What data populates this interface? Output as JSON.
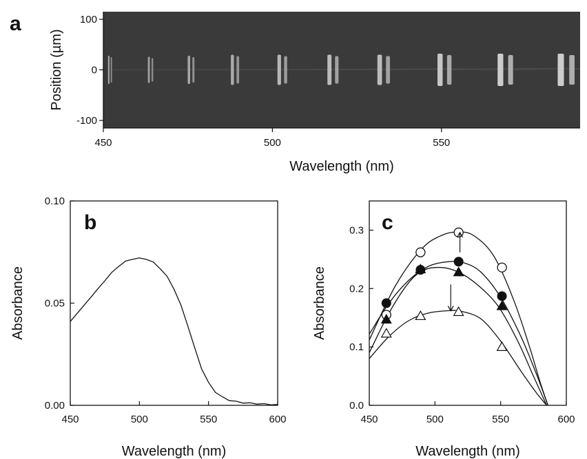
{
  "panels": {
    "a": {
      "label": "a"
    },
    "b": {
      "label": "b"
    },
    "c": {
      "label": "c"
    }
  },
  "chart_data": [
    {
      "id": "a",
      "type": "heatmap",
      "xlabel": "Wavelength (nm)",
      "ylabel": "Position (µm)",
      "xlim": [
        450,
        591
      ],
      "ylim": [
        -115,
        115
      ],
      "xticks": [
        "450",
        "500",
        "550"
      ],
      "yticks": [
        "100",
        "0",
        "-100"
      ],
      "xtick_values": [
        450,
        500,
        550
      ],
      "ytick_values": [
        100,
        0,
        -100
      ],
      "grid": false,
      "bands": [
        {
          "wavelength": 452,
          "intensity": 0.55,
          "halfheight": 28
        },
        {
          "wavelength": 464,
          "intensity": 0.45,
          "halfheight": 26
        },
        {
          "wavelength": 476,
          "intensity": 0.5,
          "halfheight": 28
        },
        {
          "wavelength": 489,
          "intensity": 0.55,
          "halfheight": 30
        },
        {
          "wavelength": 503,
          "intensity": 0.65,
          "halfheight": 30
        },
        {
          "wavelength": 518,
          "intensity": 0.7,
          "halfheight": 30
        },
        {
          "wavelength": 533,
          "intensity": 0.7,
          "halfheight": 30
        },
        {
          "wavelength": 551,
          "intensity": 0.8,
          "halfheight": 32
        },
        {
          "wavelength": 569,
          "intensity": 0.85,
          "halfheight": 32
        },
        {
          "wavelength": 587,
          "intensity": 0.85,
          "halfheight": 32
        }
      ]
    },
    {
      "id": "b",
      "type": "line",
      "xlabel": "Wavelength (nm)",
      "ylabel": "Absorbance",
      "xlim": [
        450,
        600
      ],
      "ylim": [
        0,
        0.1
      ],
      "xticks": [
        "450",
        "500",
        "550",
        "600"
      ],
      "yticks": [
        "0.10",
        "0.05",
        "0.00"
      ],
      "xtick_values": [
        450,
        500,
        550,
        600
      ],
      "ytick_values": [
        0.1,
        0.05,
        0.0
      ],
      "grid": false,
      "series": [
        {
          "x": [
            450,
            455,
            460,
            465,
            470,
            475,
            480,
            485,
            490,
            495,
            500,
            505,
            510,
            515,
            520,
            525,
            530,
            535,
            540,
            545,
            550,
            555,
            560,
            565,
            570,
            575,
            580,
            585,
            590,
            595,
            600
          ],
          "y": [
            0.041,
            0.045,
            0.049,
            0.053,
            0.057,
            0.061,
            0.065,
            0.068,
            0.0705,
            0.0715,
            0.072,
            0.0715,
            0.07,
            0.067,
            0.063,
            0.057,
            0.049,
            0.039,
            0.028,
            0.018,
            0.011,
            0.0065,
            0.004,
            0.0025,
            0.0018,
            0.0013,
            0.001,
            0.0008,
            0.0006,
            0.0005,
            0.0004
          ]
        }
      ]
    },
    {
      "id": "c",
      "type": "scatter",
      "xlabel": "Wavelength (nm)",
      "ylabel": "Absorbance",
      "xlim": [
        450,
        600
      ],
      "ylim": [
        0,
        0.35
      ],
      "xticks": [
        "450",
        "500",
        "550",
        "600"
      ],
      "yticks": [
        "0.3",
        "0.2",
        "0.1",
        "0.0"
      ],
      "xtick_values": [
        450,
        500,
        550,
        600
      ],
      "ytick_values": [
        0.3,
        0.2,
        0.1,
        0.0
      ],
      "grid": false,
      "series": [
        {
          "marker": "open-circle",
          "x": [
            463,
            489,
            518,
            551
          ],
          "y": [
            0.155,
            0.262,
            0.296,
            0.236
          ],
          "fit": {
            "x": [
              450,
              470,
              490,
              505,
              518,
              530,
              545,
              560,
              572,
              580,
              586
            ],
            "y": [
              0.112,
              0.205,
              0.268,
              0.291,
              0.297,
              0.29,
              0.255,
              0.18,
              0.1,
              0.04,
              0.0
            ]
          }
        },
        {
          "marker": "filled-circle",
          "x": [
            463,
            489,
            518,
            551
          ],
          "y": [
            0.175,
            0.232,
            0.246,
            0.187
          ],
          "fit": {
            "x": [
              450,
              465,
              480,
              495,
              510,
              522,
              535,
              550,
              565,
              577,
              586
            ],
            "y": [
              0.122,
              0.175,
              0.214,
              0.238,
              0.246,
              0.244,
              0.228,
              0.185,
              0.12,
              0.055,
              0.0
            ]
          }
        },
        {
          "marker": "filled-triangle",
          "x": [
            463,
            489,
            518,
            551
          ],
          "y": [
            0.147,
            0.233,
            0.228,
            0.17
          ],
          "fit": {
            "x": [
              450,
              465,
              480,
              492,
              505,
              518,
              532,
              548,
              563,
              575,
              585
            ],
            "y": [
              0.09,
              0.158,
              0.21,
              0.232,
              0.236,
              0.228,
              0.207,
              0.17,
              0.11,
              0.05,
              0.0
            ]
          }
        },
        {
          "marker": "open-triangle",
          "x": [
            463,
            489,
            518,
            551
          ],
          "y": [
            0.123,
            0.153,
            0.16,
            0.1
          ],
          "fit": {
            "x": [
              450,
              465,
              480,
              495,
              510,
              520,
              535,
              550,
              565,
              577,
              585
            ],
            "y": [
              0.08,
              0.118,
              0.145,
              0.158,
              0.162,
              0.161,
              0.148,
              0.11,
              0.06,
              0.022,
              0.0
            ]
          }
        }
      ],
      "annotations": [
        {
          "type": "arrow",
          "direction": "up",
          "x": 519,
          "y_from": 0.262,
          "y_to": 0.296
        },
        {
          "type": "arrow",
          "direction": "down",
          "x": 512,
          "y_from": 0.207,
          "y_to": 0.162
        }
      ]
    }
  ]
}
